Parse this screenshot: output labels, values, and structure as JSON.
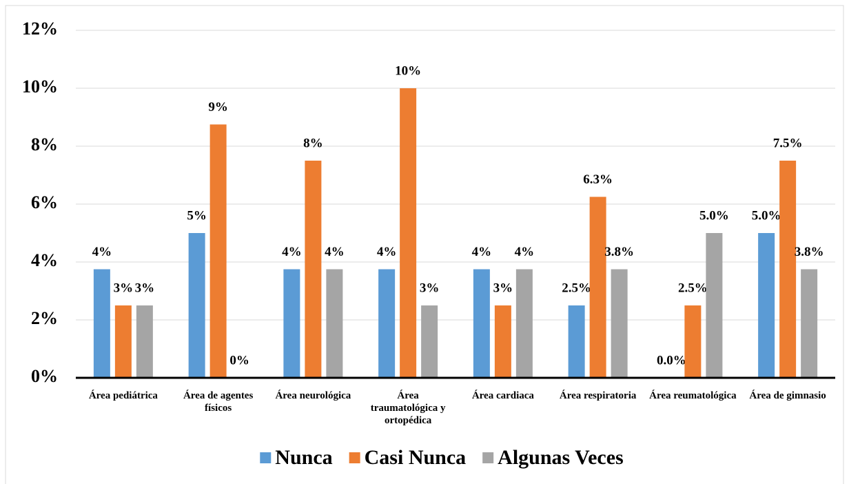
{
  "chart_data": {
    "type": "bar",
    "categories": [
      "Área pediátrica",
      "Área de agentes físicos",
      "Área neurológica",
      "Área traumatológica y ortopédica",
      "Área cardiaca",
      "Área respiratoria",
      "Área reumatológica",
      "Área de gimnasio"
    ],
    "series": [
      {
        "name": "Nunca",
        "color": "#5b9bd5",
        "values": [
          3.75,
          5,
          3.75,
          3.75,
          3.75,
          2.5,
          0,
          5
        ],
        "value_labels": [
          "4%",
          "5%",
          "4%",
          "4%",
          "4%",
          "2.5%",
          "0.0%",
          "5.0%"
        ]
      },
      {
        "name": "Casi Nunca",
        "color": "#ed7d31",
        "values": [
          2.5,
          8.75,
          7.5,
          10,
          2.5,
          6.25,
          2.5,
          7.5
        ],
        "value_labels": [
          "3%",
          "9%",
          "8%",
          "10%",
          "3%",
          "6.3%",
          "2.5%",
          "7.5%"
        ]
      },
      {
        "name": "Algunas Veces",
        "color": "#a5a5a5",
        "values": [
          2.5,
          0,
          3.75,
          2.5,
          3.75,
          3.75,
          5,
          3.75
        ],
        "value_labels": [
          "3%",
          "0%",
          "4%",
          "3%",
          "4%",
          "3.8%",
          "5.0%",
          "3.8%"
        ]
      }
    ],
    "ylim": [
      0,
      12
    ],
    "yticks": [
      {
        "value": 0,
        "label": "0%"
      },
      {
        "value": 2,
        "label": "2%"
      },
      {
        "value": 4,
        "label": "4%"
      },
      {
        "value": 6,
        "label": "6%"
      },
      {
        "value": 8,
        "label": "8%"
      },
      {
        "value": 10,
        "label": "10%"
      },
      {
        "value": 12,
        "label": "12%"
      }
    ],
    "grid": true,
    "legend": "bottom"
  }
}
